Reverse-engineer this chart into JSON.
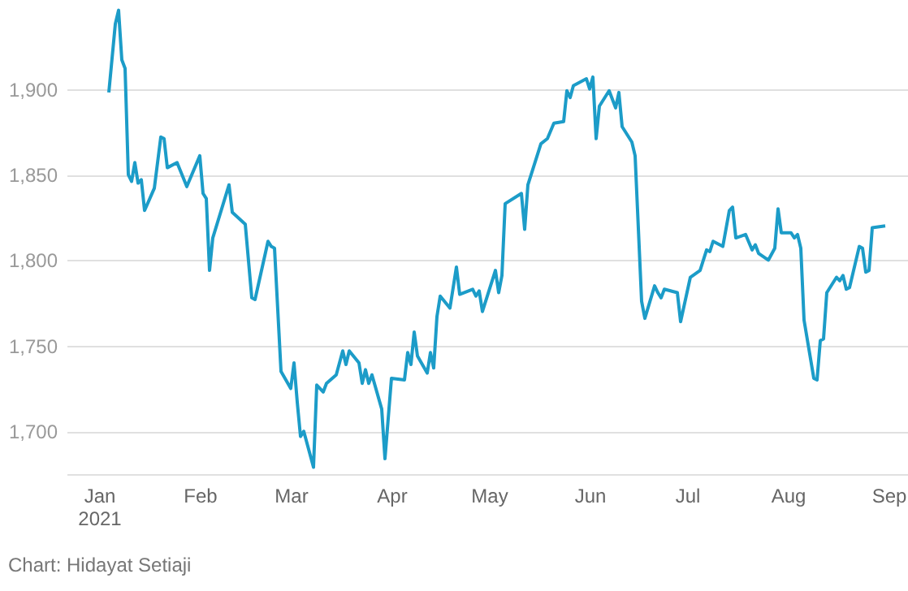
{
  "chart_data": {
    "type": "line",
    "annotations": [
      "Chart: Hidayat Setiaji"
    ],
    "x": [
      "2021-01-04",
      "2021-01-06",
      "2021-01-07",
      "2021-01-08",
      "2021-01-09",
      "2021-01-10",
      "2021-01-11",
      "2021-01-12",
      "2021-01-13",
      "2021-01-14",
      "2021-01-15",
      "2021-01-18",
      "2021-01-20",
      "2021-01-21",
      "2021-01-22",
      "2021-01-25",
      "2021-01-28",
      "2021-02-01",
      "2021-02-02",
      "2021-02-03",
      "2021-02-04",
      "2021-02-05",
      "2021-02-10",
      "2021-02-11",
      "2021-02-15",
      "2021-02-17",
      "2021-02-18",
      "2021-02-22",
      "2021-02-23",
      "2021-02-24",
      "2021-02-26",
      "2021-03-01",
      "2021-03-02",
      "2021-03-03",
      "2021-03-04",
      "2021-03-05",
      "2021-03-08",
      "2021-03-09",
      "2021-03-11",
      "2021-03-12",
      "2021-03-15",
      "2021-03-17",
      "2021-03-18",
      "2021-03-19",
      "2021-03-22",
      "2021-03-23",
      "2021-03-24",
      "2021-03-25",
      "2021-03-26",
      "2021-03-29",
      "2021-03-30",
      "2021-04-01",
      "2021-04-05",
      "2021-04-06",
      "2021-04-07",
      "2021-04-08",
      "2021-04-09",
      "2021-04-12",
      "2021-04-13",
      "2021-04-14",
      "2021-04-15",
      "2021-04-16",
      "2021-04-19",
      "2021-04-21",
      "2021-04-22",
      "2021-04-26",
      "2021-04-27",
      "2021-04-28",
      "2021-04-29",
      "2021-05-03",
      "2021-05-04",
      "2021-05-05",
      "2021-05-06",
      "2021-05-11",
      "2021-05-12",
      "2021-05-13",
      "2021-05-17",
      "2021-05-19",
      "2021-05-21",
      "2021-05-24",
      "2021-05-25",
      "2021-05-26",
      "2021-05-27",
      "2021-05-31",
      "2021-06-01",
      "2021-06-02",
      "2021-06-03",
      "2021-06-04",
      "2021-06-07",
      "2021-06-09",
      "2021-06-10",
      "2021-06-11",
      "2021-06-14",
      "2021-06-15",
      "2021-06-17",
      "2021-06-18",
      "2021-06-21",
      "2021-06-22",
      "2021-06-23",
      "2021-06-24",
      "2021-06-28",
      "2021-06-29",
      "2021-07-02",
      "2021-07-05",
      "2021-07-07",
      "2021-07-08",
      "2021-07-09",
      "2021-07-12",
      "2021-07-14",
      "2021-07-15",
      "2021-07-16",
      "2021-07-19",
      "2021-07-21",
      "2021-07-22",
      "2021-07-23",
      "2021-07-26",
      "2021-07-28",
      "2021-07-29",
      "2021-07-30",
      "2021-08-02",
      "2021-08-03",
      "2021-08-04",
      "2021-08-05",
      "2021-08-06",
      "2021-08-09",
      "2021-08-10",
      "2021-08-11",
      "2021-08-12",
      "2021-08-13",
      "2021-08-16",
      "2021-08-17",
      "2021-08-18",
      "2021-08-19",
      "2021-08-20",
      "2021-08-23",
      "2021-08-24",
      "2021-08-25",
      "2021-08-26",
      "2021-08-27",
      "2021-08-31"
    ],
    "series": [
      {
        "color": "#1c9cc8",
        "values": [
          1898,
          1938,
          1946,
          1917,
          1912,
          1850,
          1846,
          1857,
          1845,
          1847,
          1829,
          1842,
          1872,
          1871,
          1854,
          1857,
          1843,
          1861,
          1839,
          1836,
          1794,
          1813,
          1844,
          1828,
          1821,
          1778,
          1777,
          1811,
          1808,
          1807,
          1735,
          1725,
          1740,
          1717,
          1697,
          1700,
          1679,
          1727,
          1723,
          1728,
          1733,
          1747,
          1739,
          1747,
          1740,
          1728,
          1736,
          1728,
          1733,
          1713,
          1684,
          1731,
          1730,
          1746,
          1739,
          1758,
          1744,
          1734,
          1746,
          1737,
          1767,
          1779,
          1772,
          1796,
          1780,
          1783,
          1779,
          1782,
          1770,
          1794,
          1781,
          1791,
          1833,
          1839,
          1818,
          1844,
          1868,
          1871,
          1880,
          1881,
          1899,
          1895,
          1902,
          1906,
          1900,
          1907,
          1871,
          1890,
          1899,
          1889,
          1898,
          1878,
          1869,
          1861,
          1776,
          1766,
          1785,
          1781,
          1778,
          1783,
          1781,
          1764,
          1790,
          1794,
          1806,
          1805,
          1811,
          1808,
          1829,
          1831,
          1813,
          1815,
          1806,
          1809,
          1804,
          1800,
          1807,
          1830,
          1816,
          1816,
          1813,
          1815,
          1807,
          1765,
          1731,
          1730,
          1753,
          1754,
          1781,
          1790,
          1788,
          1791,
          1783,
          1784,
          1808,
          1807,
          1793,
          1794,
          1819,
          1820
        ]
      }
    ],
    "xlim": [
      "2020-12-22",
      "2021-09-07"
    ],
    "xticks": [
      {
        "value": "2021-01-01",
        "label": "Jan 2021"
      },
      {
        "value": "2021-02-01",
        "label": "Feb"
      },
      {
        "value": "2021-03-01",
        "label": "Mar"
      },
      {
        "value": "2021-04-01",
        "label": "Apr"
      },
      {
        "value": "2021-05-01",
        "label": "May"
      },
      {
        "value": "2021-06-01",
        "label": "Jun"
      },
      {
        "value": "2021-07-01",
        "label": "Jul"
      },
      {
        "value": "2021-08-01",
        "label": "Aug"
      },
      {
        "value": "2021-09-01",
        "label": "Sep"
      }
    ],
    "ylim": [
      1675,
      1952
    ],
    "yticks": [
      {
        "value": 1700,
        "label": "1,700"
      },
      {
        "value": 1750,
        "label": "1,750"
      },
      {
        "value": 1800,
        "label": "1,800"
      },
      {
        "value": 1850,
        "label": "1,850"
      },
      {
        "value": 1900,
        "label": "1,900"
      }
    ],
    "grid": "y",
    "line_style": "solid"
  }
}
